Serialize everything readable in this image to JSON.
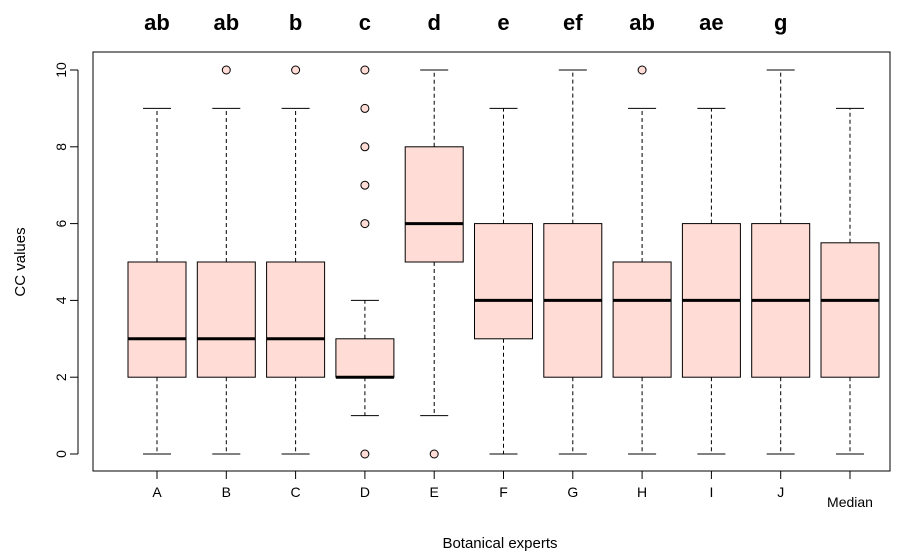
{
  "chart_data": {
    "type": "boxplot",
    "title": "",
    "xlabel": "Botanical experts",
    "ylabel": "CC values",
    "ylim": [
      -0.4,
      10.4
    ],
    "yticks": [
      0,
      2,
      4,
      6,
      8,
      10
    ],
    "grid": false,
    "legend": "none",
    "colors": {
      "box_fill": "#ffdcd6",
      "stroke": "#000000",
      "outlier_fill": "#ffdcd6"
    },
    "categories": [
      "A",
      "B",
      "C",
      "D",
      "E",
      "F",
      "G",
      "H",
      "I",
      "J",
      "Median"
    ],
    "group_letters": [
      "ab",
      "ab",
      "b",
      "c",
      "d",
      "e",
      "ef",
      "ab",
      "ae",
      "g",
      ""
    ],
    "boxes": [
      {
        "category": "A",
        "whisker_low": 0,
        "q1": 2,
        "median": 3,
        "q3": 5,
        "whisker_high": 9,
        "outliers": []
      },
      {
        "category": "B",
        "whisker_low": 0,
        "q1": 2,
        "median": 3,
        "q3": 5,
        "whisker_high": 9,
        "outliers": [
          10
        ]
      },
      {
        "category": "C",
        "whisker_low": 0,
        "q1": 2,
        "median": 3,
        "q3": 5,
        "whisker_high": 9,
        "outliers": [
          10
        ]
      },
      {
        "category": "D",
        "whisker_low": 1,
        "q1": 2,
        "median": 2,
        "q3": 3,
        "whisker_high": 4,
        "outliers": [
          0,
          6,
          7,
          8,
          9,
          10
        ]
      },
      {
        "category": "E",
        "whisker_low": 1,
        "q1": 5,
        "median": 6,
        "q3": 8,
        "whisker_high": 10,
        "outliers": [
          0
        ]
      },
      {
        "category": "F",
        "whisker_low": 0,
        "q1": 3,
        "median": 4,
        "q3": 6,
        "whisker_high": 9,
        "outliers": []
      },
      {
        "category": "G",
        "whisker_low": 0,
        "q1": 2,
        "median": 4,
        "q3": 6,
        "whisker_high": 10,
        "outliers": []
      },
      {
        "category": "H",
        "whisker_low": 0,
        "q1": 2,
        "median": 4,
        "q3": 5,
        "whisker_high": 9,
        "outliers": [
          10
        ]
      },
      {
        "category": "I",
        "whisker_low": 0,
        "q1": 2,
        "median": 4,
        "q3": 6,
        "whisker_high": 9,
        "outliers": []
      },
      {
        "category": "J",
        "whisker_low": 0,
        "q1": 2,
        "median": 4,
        "q3": 6,
        "whisker_high": 10,
        "outliers": []
      },
      {
        "category": "Median",
        "whisker_low": 0,
        "q1": 2,
        "median": 4,
        "q3": 5.5,
        "whisker_high": 9,
        "outliers": []
      }
    ]
  }
}
